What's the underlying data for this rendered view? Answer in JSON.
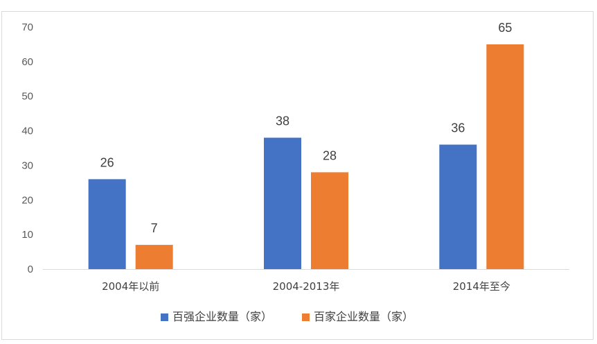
{
  "chart_data": {
    "type": "bar",
    "title": "",
    "xlabel": "",
    "ylabel": "",
    "categories": [
      "2004年以前",
      "2004-2013年",
      "2014年至今"
    ],
    "series": [
      {
        "name": "百强企业数量（家）",
        "color": "#4472c4",
        "values": [
          26,
          38,
          36
        ]
      },
      {
        "name": "百家企业数量（家）",
        "color": "#ed7d31",
        "values": [
          7,
          28,
          65
        ]
      }
    ],
    "ylim": [
      0,
      70
    ],
    "yticks": [
      0,
      10,
      20,
      30,
      40,
      50,
      60,
      70
    ],
    "grid": false,
    "legend_position": "bottom",
    "data_labels": true
  }
}
